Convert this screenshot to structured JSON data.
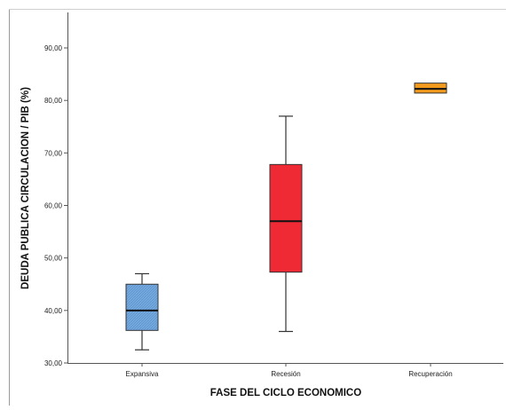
{
  "chart_data": {
    "type": "boxplot",
    "xlabel": "FASE DEL CICLO ECONOMICO",
    "ylabel": "DEUDA PUBLICA CIRCULACION / PIB (%)",
    "ylim": [
      30,
      95
    ],
    "yticks": [
      30,
      40,
      50,
      60,
      70,
      80,
      90
    ],
    "ytick_labels": [
      "30,00",
      "40,00",
      "50,00",
      "60,00",
      "70,00",
      "80,00",
      "90,00"
    ],
    "grid": false,
    "categories": [
      "Expansiva",
      "Recesión",
      "Recuperación"
    ],
    "boxes": [
      {
        "category": "Expansiva",
        "whisker_low": 32.5,
        "q1": 36.2,
        "median": 40.0,
        "q3": 45.0,
        "whisker_high": 47.0,
        "color": "#74a9e0",
        "hatched": true
      },
      {
        "category": "Recesión",
        "whisker_low": 36.0,
        "q1": 47.3,
        "median": 57.0,
        "q3": 67.8,
        "whisker_high": 77.0,
        "color": "#f02a35",
        "hatched": false
      },
      {
        "category": "Recuperación",
        "whisker_low": 81.4,
        "q1": 81.4,
        "median": 82.2,
        "q3": 83.3,
        "whisker_high": 83.3,
        "color": "#f29a1d",
        "hatched": false
      }
    ]
  }
}
